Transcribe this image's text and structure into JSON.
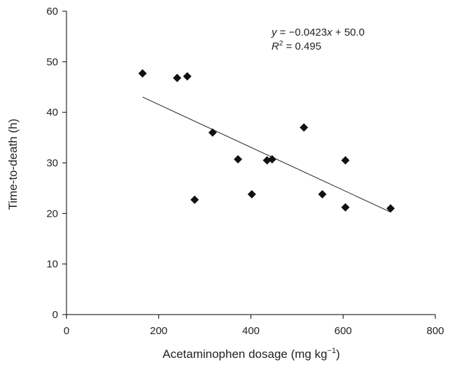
{
  "chart_data": {
    "type": "scatter",
    "xlabel": "Acetaminophen dosage (mg kg",
    "xlabel_sup": "−1",
    "xlabel_close": ")",
    "ylabel": "Time-to-death (h)",
    "xlim": [
      0,
      800
    ],
    "ylim": [
      0,
      60
    ],
    "x_ticks": [
      0,
      200,
      400,
      600,
      800
    ],
    "y_ticks": [
      0,
      10,
      20,
      30,
      40,
      50,
      60
    ],
    "grid": false,
    "marker": "diamond",
    "marker_color": "#111111",
    "points": [
      {
        "x": 165,
        "y": 47.7
      },
      {
        "x": 240,
        "y": 46.8
      },
      {
        "x": 262,
        "y": 47.1
      },
      {
        "x": 278,
        "y": 22.7
      },
      {
        "x": 317,
        "y": 36.0
      },
      {
        "x": 372,
        "y": 30.7
      },
      {
        "x": 402,
        "y": 23.8
      },
      {
        "x": 435,
        "y": 30.5
      },
      {
        "x": 446,
        "y": 30.7
      },
      {
        "x": 515,
        "y": 37.0
      },
      {
        "x": 555,
        "y": 23.8
      },
      {
        "x": 605,
        "y": 30.5
      },
      {
        "x": 605,
        "y": 21.2
      },
      {
        "x": 703,
        "y": 21.0
      }
    ],
    "trendline": {
      "slope": -0.0423,
      "intercept": 50.0,
      "x_from": 165,
      "x_to": 703
    },
    "annotation": {
      "eq_y": "y",
      "eq_eq": " = −0.0423",
      "eq_x": "x",
      "eq_rest": " + 50.0",
      "r2_r": "R",
      "r2_sup": "2",
      "r2_rest": " = 0.495"
    }
  }
}
